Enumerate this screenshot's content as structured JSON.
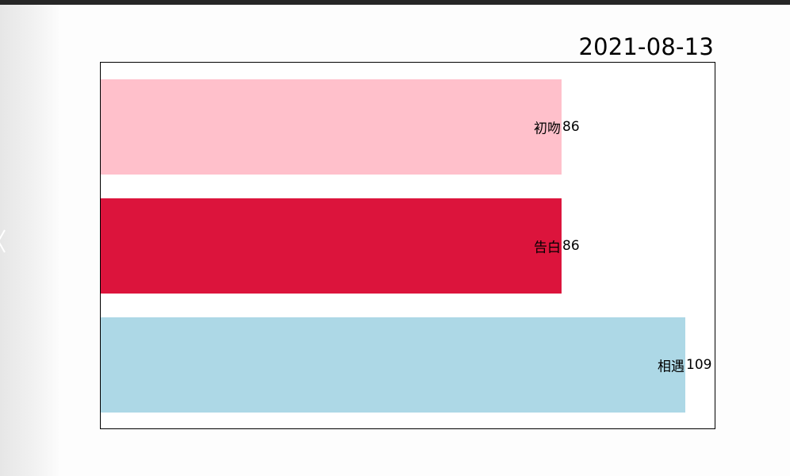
{
  "date": "2021-08-13",
  "chart_data": {
    "type": "bar",
    "orientation": "horizontal",
    "title": "2021-08-13",
    "categories": [
      "初吻",
      "告白",
      "相遇"
    ],
    "values": [
      86,
      86,
      109
    ],
    "colors": [
      "#ffc0cb",
      "#dc143c",
      "#add8e6"
    ],
    "xlim": [
      0,
      114.5
    ],
    "grid": false,
    "legend": "none"
  }
}
